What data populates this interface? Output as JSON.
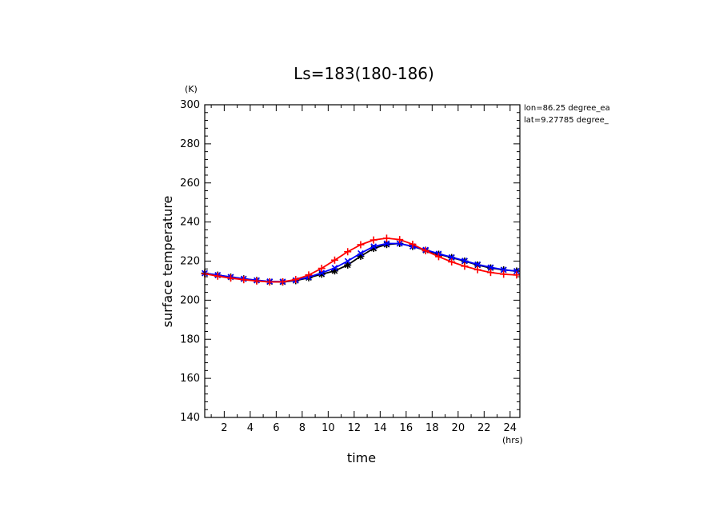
{
  "chart_data": {
    "type": "line",
    "title": "Ls=183(180-186)",
    "xlabel": "time",
    "ylabel": "surface temperature",
    "x_unit": "(hrs)",
    "y_unit": "(K)",
    "xlim": [
      0.5,
      24.75
    ],
    "ylim": [
      140,
      300
    ],
    "x_ticks": [
      2,
      4,
      6,
      8,
      10,
      12,
      14,
      16,
      18,
      20,
      22,
      24
    ],
    "y_ticks": [
      140,
      160,
      180,
      200,
      220,
      240,
      260,
      280,
      300
    ],
    "annotations": [
      "lon=86.25 degree_ea",
      "lat=9.27785 degree_"
    ],
    "grid": false,
    "x": [
      0.5,
      1.5,
      2.5,
      3.5,
      4.5,
      5.5,
      6.5,
      7.5,
      8.5,
      9.5,
      10.5,
      11.5,
      12.5,
      13.5,
      14.5,
      15.5,
      16.5,
      17.5,
      18.5,
      19.5,
      20.5,
      21.5,
      22.5,
      23.5,
      24.5
    ],
    "series": [
      {
        "color": "#000000",
        "marker": "star",
        "values": [
          213.8,
          212.8,
          211.8,
          210.9,
          210.1,
          209.4,
          209.3,
          210.0,
          211.5,
          213.3,
          215.0,
          218.0,
          222.5,
          226.5,
          228.5,
          229.0,
          227.5,
          225.5,
          223.5,
          221.8,
          220.0,
          218.0,
          216.5,
          215.5,
          214.9
        ]
      },
      {
        "color": "#0000ff",
        "marker": "x",
        "values": [
          213.8,
          212.9,
          211.9,
          211.0,
          210.2,
          209.6,
          209.5,
          210.2,
          211.8,
          214.0,
          216.5,
          220.0,
          224.0,
          227.5,
          229.0,
          229.0,
          227.5,
          225.8,
          223.8,
          222.0,
          220.2,
          218.3,
          216.8,
          215.6,
          214.9
        ]
      },
      {
        "color": "#ff0000",
        "marker": "plus",
        "values": [
          213.5,
          212.3,
          211.3,
          210.5,
          209.8,
          209.3,
          209.4,
          210.6,
          212.9,
          216.3,
          220.5,
          224.8,
          228.4,
          230.8,
          231.7,
          231.0,
          228.6,
          225.3,
          222.3,
          219.6,
          217.4,
          215.6,
          214.2,
          213.3,
          212.9
        ]
      }
    ]
  }
}
